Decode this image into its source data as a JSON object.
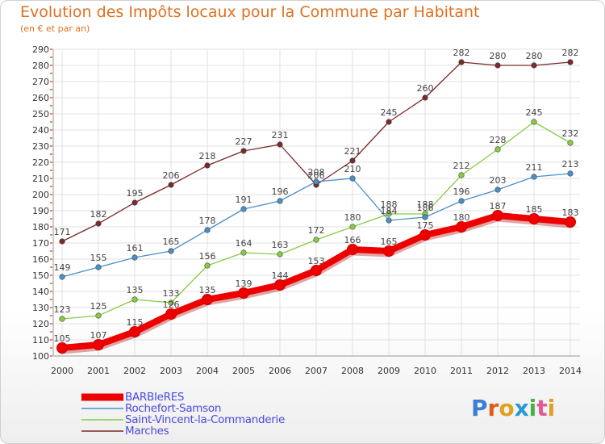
{
  "header": {
    "title": "Evolution des Impôts locaux pour la Commune par Habitant",
    "subtitle": "(en € et par an)"
  },
  "brand": {
    "logo_text": "Proxiti",
    "letter_colors": [
      "#3a7fd5",
      "#e05a1e",
      "#e0a020",
      "#2a9ad5",
      "#4ab04a",
      "#e05a9a",
      "#e0a020"
    ]
  },
  "colors": {
    "title": "#e07020",
    "legend_text": "#4a4ae0",
    "grid": "#e0e0e0",
    "axis_tick_red": "#cc0000"
  },
  "chart_data": {
    "type": "line",
    "title": "Evolution des Impôts locaux pour la Commune par Habitant",
    "subtitle": "(en € et par an)",
    "x": [
      2000,
      2001,
      2002,
      2003,
      2004,
      2005,
      2006,
      2007,
      2008,
      2009,
      2010,
      2011,
      2012,
      2013,
      2014
    ],
    "ylim": [
      100,
      290
    ],
    "ytick_step": 10,
    "grid": true,
    "legend_position": "bottom-left",
    "series": [
      {
        "name": "BARBIeRES",
        "color": "#ee0000",
        "values": [
          105,
          107,
          115,
          126,
          135,
          139,
          144,
          153,
          166,
          165,
          175,
          180,
          187,
          185,
          183
        ],
        "labels": [
          "105",
          "107",
          "115",
          "126",
          "135",
          "139",
          "144",
          "153",
          "166",
          "165",
          "175",
          "180",
          "187",
          "185",
          "183"
        ]
      },
      {
        "name": "Rochefort-Samson",
        "color": "#4a90c8",
        "values": [
          149,
          155,
          161,
          165,
          178,
          191,
          196,
          208,
          210,
          184,
          186,
          196,
          203,
          211,
          213
        ],
        "labels": [
          "149",
          "155",
          "161",
          "165",
          "178",
          "191",
          "196",
          "208",
          "210",
          "184",
          "186",
          "196",
          "203",
          "211",
          "213"
        ]
      },
      {
        "name": "Saint-Vincent-la-Commanderie",
        "color": "#88cc44",
        "values": [
          123,
          125,
          135,
          133,
          156,
          164,
          163,
          172,
          180,
          188,
          188,
          212,
          228,
          245,
          232
        ],
        "labels": [
          "123",
          "125",
          "135",
          "133",
          "156",
          "164",
          "163",
          "172",
          "180",
          "188",
          "188",
          "212",
          "228",
          "245",
          "232"
        ]
      },
      {
        "name": "Marches",
        "color": "#7a2a2a",
        "values": [
          171,
          182,
          195,
          206,
          218,
          227,
          231,
          206,
          221,
          245,
          260,
          282,
          280,
          280,
          282
        ],
        "labels": [
          "171",
          "182",
          "195",
          "206",
          "218",
          "227",
          "231",
          "206",
          "221",
          "245",
          "260",
          "282",
          "280",
          "280",
          "282"
        ]
      }
    ]
  }
}
